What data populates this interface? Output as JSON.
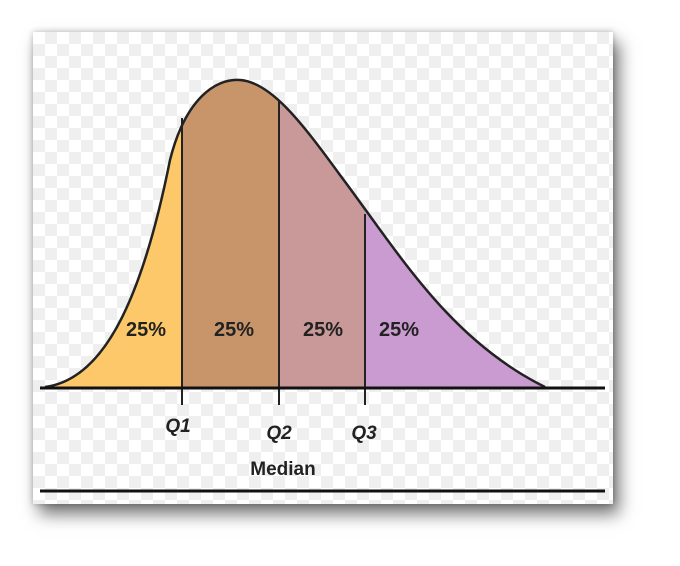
{
  "diagram": {
    "segments": [
      {
        "label": "25%",
        "color": "#FDC86A"
      },
      {
        "label": "25%",
        "color": "#C8956A"
      },
      {
        "label": "25%",
        "color": "#C99898"
      },
      {
        "label": "25%",
        "color": "#C99BD0"
      }
    ],
    "quartiles": [
      "Q1",
      "Q2",
      "Q3"
    ],
    "median_label": "Median"
  }
}
